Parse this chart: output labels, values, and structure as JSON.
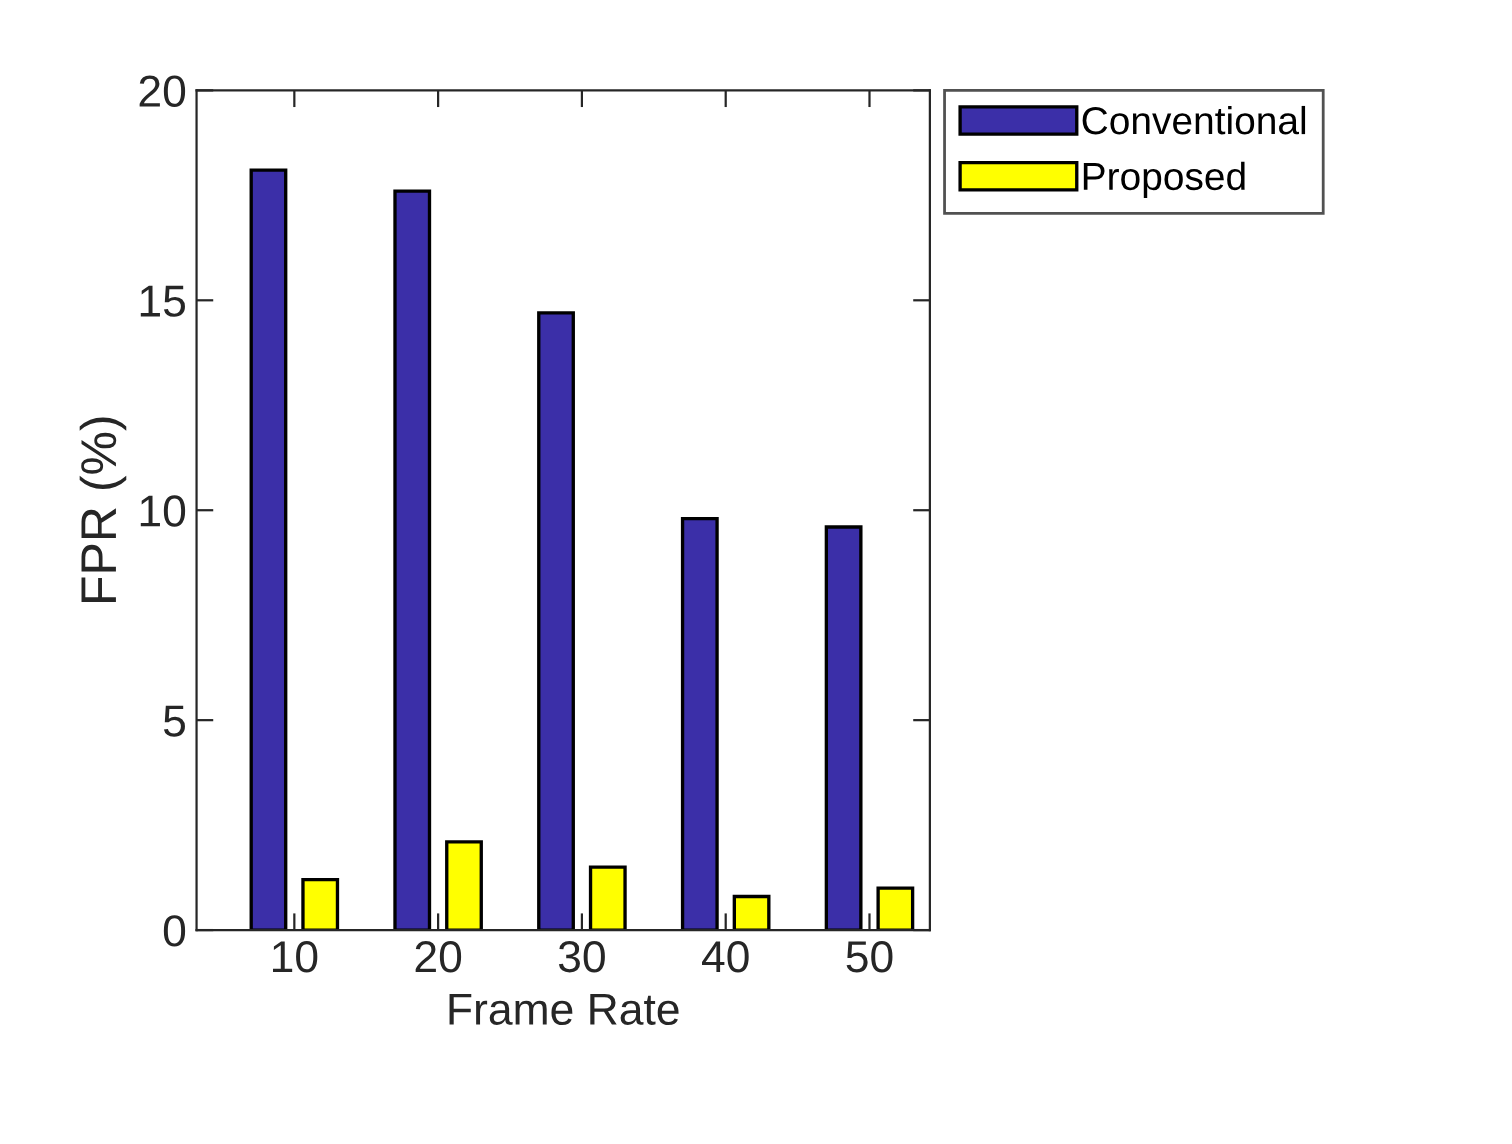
{
  "chart_data": {
    "type": "bar",
    "xlabel": "Frame Rate",
    "ylabel": "FPR (%)",
    "categories": [
      "10",
      "20",
      "30",
      "40",
      "50"
    ],
    "series": [
      {
        "name": "Conventional",
        "color": "#3b2fa8",
        "values": [
          18.1,
          17.6,
          14.7,
          9.8,
          9.6
        ]
      },
      {
        "name": "Proposed",
        "color": "#ffff00",
        "values": [
          1.2,
          2.1,
          1.5,
          0.8,
          1.0
        ]
      }
    ],
    "ylim": [
      0,
      20
    ],
    "yticks": [
      0,
      5,
      10,
      15,
      20
    ],
    "grid": false,
    "legend": "top right"
  }
}
